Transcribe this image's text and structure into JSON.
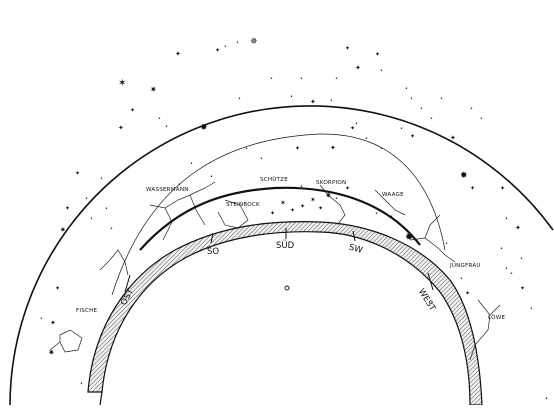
{
  "constellations": {
    "wassermann": "WASSERMANN",
    "steinbock": "STEINBOCK",
    "schuetze": "SCHÜTZE",
    "skorpion": "SKORPION",
    "waage": "WAAGE",
    "jungfrau": "JUNGFRAU",
    "fische": "FISCHE",
    "loewe": "LÖWE"
  },
  "directions": {
    "ost": "OST",
    "so": "SO",
    "sued": "SÜD",
    "sw": "SW",
    "west": "WEST"
  }
}
